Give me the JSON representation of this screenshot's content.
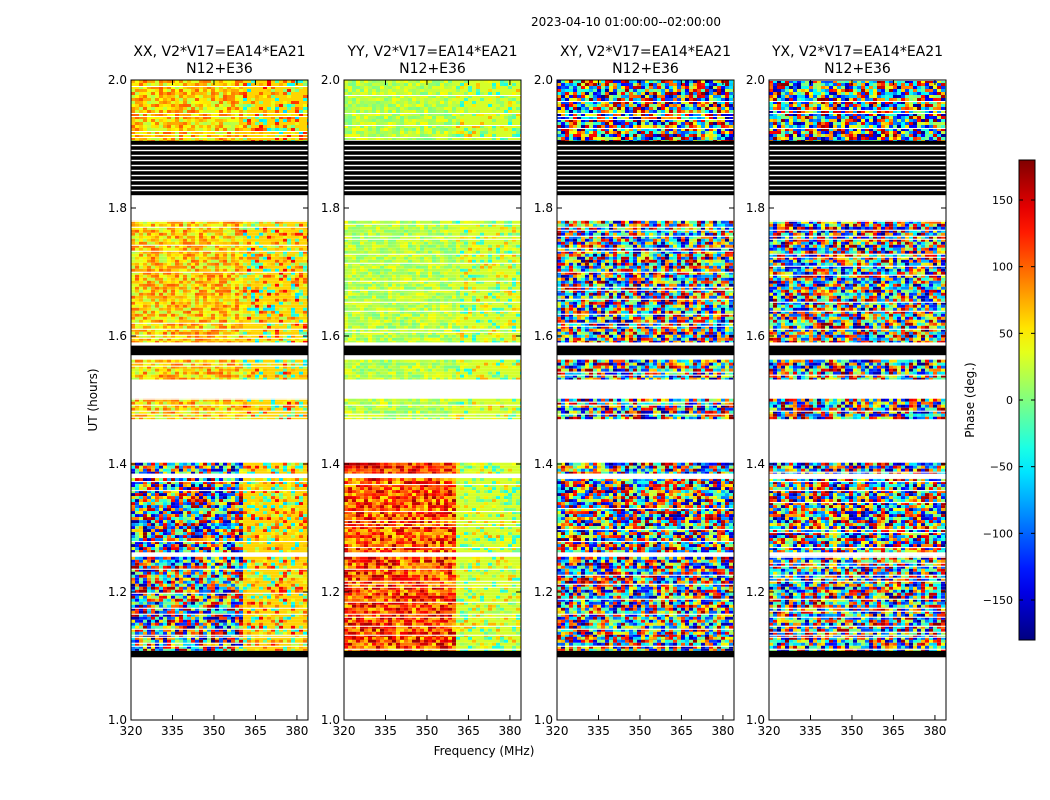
{
  "figure_title": "2023-04-10  01:00:00--02:00:00",
  "chart_data": {
    "type": "heatmap",
    "ylabel": "UT (hours)",
    "xlabel": "Frequency (MHz)",
    "xlim": [
      320,
      384
    ],
    "ylim": [
      1.0,
      2.0
    ],
    "xticks": [
      320,
      335,
      350,
      365,
      380
    ],
    "yticks": [
      1.0,
      1.2,
      1.4,
      1.6,
      1.8,
      2.0
    ],
    "xtick_labels": [
      "320",
      "335",
      "350",
      "365",
      "380"
    ],
    "ytick_labels": [
      "1.0",
      "1.2",
      "1.4",
      "1.6",
      "1.8",
      "2.0"
    ],
    "freq_boundary_mhz": 360,
    "panels": [
      {
        "title_line1": "XX, V2*V17=EA14*EA21",
        "title_line2": "N12+E36",
        "mean_phase": 60,
        "mode": "mid-phase"
      },
      {
        "title_line1": "YY, V2*V17=EA14*EA21",
        "title_line2": "N12+E36",
        "mean_phase": 20,
        "mode": "low-noise"
      },
      {
        "title_line1": "XY, V2*V17=EA14*EA21",
        "title_line2": "N12+E36",
        "mean_phase": 0,
        "mode": "random"
      },
      {
        "title_line1": "YX, V2*V17=EA14*EA21",
        "title_line2": "N12+E36",
        "mean_phase": 0,
        "mode": "random"
      }
    ],
    "data_bands_ut": [
      {
        "start": 1.88,
        "end": 2.0,
        "kind": "data"
      },
      {
        "start": 1.82,
        "end": 1.905,
        "kind": "flagged-stripes"
      },
      {
        "start": 1.59,
        "end": 1.78,
        "kind": "data"
      },
      {
        "start": 1.57,
        "end": 1.585,
        "kind": "flagged"
      },
      {
        "start": 1.532,
        "end": 1.563,
        "kind": "data"
      },
      {
        "start": 1.47,
        "end": 1.502,
        "kind": "data"
      },
      {
        "start": 1.385,
        "end": 1.402,
        "kind": "data"
      },
      {
        "start": 1.262,
        "end": 1.378,
        "kind": "data"
      },
      {
        "start": 1.125,
        "end": 1.255,
        "kind": "data"
      },
      {
        "start": 1.108,
        "end": 1.13,
        "kind": "data"
      },
      {
        "start": 1.098,
        "end": 1.108,
        "kind": "flagged"
      }
    ],
    "colorbar": {
      "label": "Phase (deg.)",
      "range": [
        -180,
        180
      ],
      "ticks": [
        150,
        100,
        50,
        0,
        -50,
        -100,
        -150
      ],
      "tick_labels": [
        "150",
        "100",
        "50",
        "0",
        "−50",
        "−100",
        "−150"
      ],
      "colormap": "jet"
    }
  }
}
